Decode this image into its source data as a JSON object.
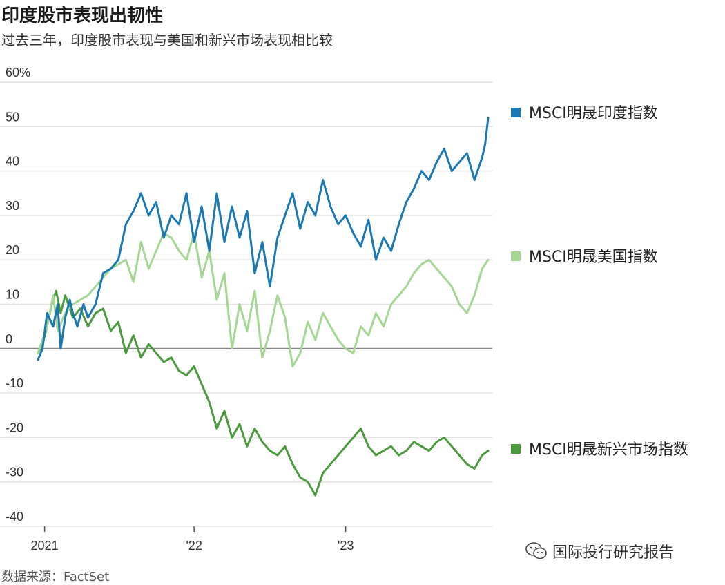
{
  "title": "印度股市表现出韧性",
  "subtitle": "过去三年，印度股市表现与美国和新兴市场表现相比较",
  "source": "数据来源：FactSet",
  "watermark": "国际投行研究报告",
  "colors": {
    "india": "#1a78b3",
    "usa": "#a6d694",
    "em": "#4b9a3e",
    "zero": "#888888",
    "grid": "#e2e2e2"
  },
  "chart_data": {
    "type": "line",
    "title": "印度股市表现出韧性",
    "xlabel": "",
    "ylabel": "",
    "ylim": [
      -40,
      60
    ],
    "xlim": [
      2021.0,
      2023.95
    ],
    "y_ticks": [
      {
        "value": 60,
        "label": "60%"
      },
      {
        "value": 50,
        "label": "50"
      },
      {
        "value": 40,
        "label": "40"
      },
      {
        "value": 30,
        "label": "30"
      },
      {
        "value": 20,
        "label": "20"
      },
      {
        "value": 10,
        "label": "10"
      },
      {
        "value": 0,
        "label": "0"
      },
      {
        "value": -10,
        "label": "-10"
      },
      {
        "value": -20,
        "label": "-20"
      },
      {
        "value": -30,
        "label": "-30"
      },
      {
        "value": -40,
        "label": "-40"
      }
    ],
    "x_ticks": [
      {
        "value": 2021.0,
        "label": "2021"
      },
      {
        "value": 2022.0,
        "label": "'22"
      },
      {
        "value": 2023.0,
        "label": "'23"
      }
    ],
    "series": [
      {
        "name": "MSCI明晟印度指数",
        "color": "#1a78b3",
        "x": [
          2020.97,
          2021.0,
          2021.03,
          2021.07,
          2021.1,
          2021.12,
          2021.15,
          2021.18,
          2021.2,
          2021.23,
          2021.27,
          2021.3,
          2021.35,
          2021.4,
          2021.45,
          2021.5,
          2021.55,
          2021.6,
          2021.65,
          2021.7,
          2021.75,
          2021.8,
          2021.85,
          2021.9,
          2021.95,
          2022.0,
          2022.05,
          2022.1,
          2022.15,
          2022.2,
          2022.25,
          2022.3,
          2022.35,
          2022.4,
          2022.45,
          2022.5,
          2022.55,
          2022.6,
          2022.65,
          2022.7,
          2022.75,
          2022.8,
          2022.85,
          2022.9,
          2022.95,
          2023.0,
          2023.05,
          2023.1,
          2023.15,
          2023.2,
          2023.25,
          2023.3,
          2023.35,
          2023.4,
          2023.45,
          2023.5,
          2023.55,
          2023.6,
          2023.65,
          2023.7,
          2023.75,
          2023.8,
          2023.85,
          2023.9,
          2023.92,
          2023.94
        ],
        "y": [
          -2.5,
          0,
          8,
          5,
          10,
          0,
          7,
          11,
          8,
          5,
          10,
          7,
          10,
          17,
          18,
          20,
          28,
          31,
          35,
          30,
          33,
          25,
          30,
          28,
          35,
          24,
          32,
          22,
          35,
          24,
          32,
          25,
          31,
          17,
          24,
          14,
          25,
          30,
          35,
          27,
          33,
          30,
          38,
          32,
          28,
          30,
          26,
          23,
          29,
          20,
          25,
          22,
          28,
          33,
          36,
          40,
          38,
          42,
          45,
          40,
          42,
          44,
          38,
          43,
          46,
          52
        ]
      },
      {
        "name": "MSCI明晟美国指数",
        "color": "#a6d694",
        "x": [
          2020.97,
          2021.0,
          2021.03,
          2021.07,
          2021.1,
          2021.15,
          2021.2,
          2021.25,
          2021.3,
          2021.35,
          2021.4,
          2021.45,
          2021.5,
          2021.55,
          2021.6,
          2021.65,
          2021.7,
          2021.75,
          2021.8,
          2021.85,
          2021.9,
          2021.95,
          2022.0,
          2022.05,
          2022.1,
          2022.15,
          2022.2,
          2022.25,
          2022.3,
          2022.35,
          2022.4,
          2022.45,
          2022.5,
          2022.55,
          2022.6,
          2022.65,
          2022.7,
          2022.75,
          2022.8,
          2022.85,
          2022.9,
          2022.95,
          2023.0,
          2023.05,
          2023.1,
          2023.15,
          2023.2,
          2023.25,
          2023.3,
          2023.35,
          2023.4,
          2023.45,
          2023.5,
          2023.55,
          2023.6,
          2023.65,
          2023.7,
          2023.75,
          2023.8,
          2023.85,
          2023.9,
          2023.94
        ],
        "y": [
          -1,
          2,
          5,
          12,
          4,
          8,
          10,
          11,
          12,
          14,
          16,
          18,
          19,
          20,
          15,
          24,
          18,
          22,
          26,
          25,
          22,
          20,
          26,
          16,
          22,
          11,
          17,
          0,
          10,
          4,
          13,
          -2,
          4,
          12,
          7,
          -4,
          -1,
          6,
          2,
          8,
          5,
          2,
          0,
          -1,
          5,
          3,
          8,
          5,
          10,
          12,
          14,
          17,
          19,
          20,
          18,
          16,
          14,
          10,
          8,
          12,
          18,
          20
        ]
      },
      {
        "name": "MSCI明晟新兴市场指数",
        "color": "#4b9a3e",
        "x": [
          2020.97,
          2021.0,
          2021.03,
          2021.06,
          2021.09,
          2021.12,
          2021.15,
          2021.2,
          2021.25,
          2021.3,
          2021.35,
          2021.4,
          2021.45,
          2021.5,
          2021.55,
          2021.6,
          2021.65,
          2021.7,
          2021.75,
          2021.8,
          2021.85,
          2021.9,
          2021.95,
          2022.0,
          2022.05,
          2022.1,
          2022.15,
          2022.2,
          2022.25,
          2022.3,
          2022.35,
          2022.4,
          2022.45,
          2022.5,
          2022.55,
          2022.6,
          2022.65,
          2022.7,
          2022.75,
          2022.8,
          2022.85,
          2022.9,
          2022.95,
          2023.0,
          2023.05,
          2023.1,
          2023.15,
          2023.2,
          2023.25,
          2023.3,
          2023.35,
          2023.4,
          2023.45,
          2023.5,
          2023.55,
          2023.6,
          2023.65,
          2023.7,
          2023.75,
          2023.8,
          2023.85,
          2023.9,
          2023.94
        ],
        "y": [
          -1,
          1,
          5,
          10,
          13,
          8,
          12,
          7,
          9,
          5,
          8,
          9,
          4,
          6,
          -1,
          3,
          -2,
          1,
          -1,
          -3,
          -2,
          -5,
          -6,
          -4,
          -8,
          -12,
          -18,
          -14,
          -20,
          -17,
          -22,
          -18,
          -21,
          -23,
          -24,
          -22,
          -26,
          -29,
          -30,
          -33,
          -28,
          -26,
          -24,
          -22,
          -20,
          -18,
          -22,
          -24,
          -23,
          -22,
          -24,
          -23,
          -21,
          -22,
          -23,
          -21,
          -20,
          -22,
          -24,
          -26,
          -27,
          -24,
          -23
        ]
      }
    ]
  }
}
